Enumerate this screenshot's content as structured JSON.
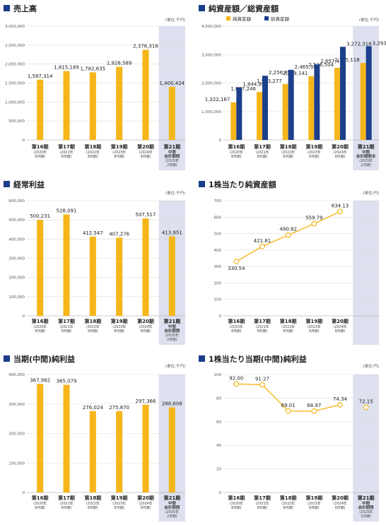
{
  "colors": {
    "bar": "#f5b61a",
    "navy": "#1c3f8c",
    "highlight": "#dde0ee",
    "title_marker": "#1a3c8b",
    "line": "#f5b61a"
  },
  "chart_data": [
    {
      "type": "bar",
      "title": "売上高",
      "unit": "(単位:千円)",
      "categories": [
        "第16期",
        "第17期",
        "第18期",
        "第19期",
        "第20期",
        "第21期"
      ],
      "sublabels": [
        [
          "(2020年",
          "8月期)"
        ],
        [
          "(2021年",
          "8月期)"
        ],
        [
          "(2022年",
          "8月期)"
        ],
        [
          "(2023年",
          "8月期)"
        ],
        [
          "(2024年",
          "8月期)"
        ],
        [
          "中間",
          "会計期間",
          "(2025年",
          "2月期)"
        ]
      ],
      "ylim": [
        0,
        3000000
      ],
      "yticks": [
        "0",
        "500,000",
        "1,000,000",
        "1,500,000",
        "2,000,000",
        "2,500,000",
        "3,000,000"
      ],
      "series": [
        {
          "values": [
            1587314,
            1815189,
            1782635,
            1928589,
            2376316,
            1400424
          ],
          "labels": [
            "1,587,314",
            "1,815,189",
            "1,782,635",
            "1,928,589",
            "2,376,316",
            "1,400,424"
          ]
        }
      ]
    },
    {
      "type": "bar",
      "title": "純資産額／総資産額",
      "unit": "(単位:千円)",
      "legend": [
        "純資産額",
        "総資産額"
      ],
      "categories": [
        "第16期",
        "第17期",
        "第18期",
        "第19期",
        "第20期",
        "第21期"
      ],
      "sublabels": [
        [
          "(2020年",
          "8月期)"
        ],
        [
          "(2021年",
          "8月期)"
        ],
        [
          "(2022年",
          "8月期)"
        ],
        [
          "(2023年",
          "8月期)"
        ],
        [
          "(2024年",
          "8月期)"
        ],
        [
          "中間",
          "会計期間末",
          "(2025年",
          "2月期)"
        ]
      ],
      "ylim": [
        0,
        4000000
      ],
      "yticks": [
        "0",
        "1,000,000",
        "2,000,000",
        "3,000,000",
        "4,000,000"
      ],
      "series": [
        {
          "name": "純資産額",
          "values": [
            1322167,
            1687246,
            1963277,
            2239141,
            2536504,
            2705118
          ],
          "labels": [
            "1,322,167",
            "1,687,246",
            "1,963,277",
            "2,239,141",
            "2,536,504",
            "2,705,118"
          ]
        },
        {
          "name": "総資産額",
          "values": [
            1844896,
            2256896,
            2465184,
            2657418,
            3272318,
            3293379
          ],
          "labels": [
            "1,844,896",
            "2,256,896",
            "2,465,184",
            "2,657,418",
            "3,272,318",
            "3,293,379"
          ]
        }
      ]
    },
    {
      "type": "bar",
      "title": "経常利益",
      "unit": "(単位:千円)",
      "categories": [
        "第16期",
        "第17期",
        "第18期",
        "第19期",
        "第20期",
        "第21期"
      ],
      "sublabels": [
        [
          "(2020年",
          "8月期)"
        ],
        [
          "(2021年",
          "8月期)"
        ],
        [
          "(2022年",
          "8月期)"
        ],
        [
          "(2023年",
          "8月期)"
        ],
        [
          "(2024年",
          "8月期)"
        ],
        [
          "中間",
          "会計期間",
          "(2025年",
          "2月期)"
        ]
      ],
      "ylim": [
        0,
        600000
      ],
      "yticks": [
        "0",
        "100,000",
        "200,000",
        "300,000",
        "400,000",
        "500,000",
        "600,000"
      ],
      "series": [
        {
          "values": [
            500231,
            528091,
            412547,
            407276,
            507517,
            413951
          ],
          "labels": [
            "500,231",
            "528,091",
            "412,547",
            "407,276",
            "507,517",
            "413,951"
          ]
        }
      ]
    },
    {
      "type": "line",
      "title": "1株当たり純資産額",
      "unit": "(単位:円)",
      "categories": [
        "第16期",
        "第17期",
        "第18期",
        "第19期",
        "第20期"
      ],
      "sublabels": [
        [
          "(2020年",
          "8月期)"
        ],
        [
          "(2021年",
          "8月期)"
        ],
        [
          "(2022年",
          "8月期)"
        ],
        [
          "(2023年",
          "8月期)"
        ],
        [
          "(2024年",
          "8月期)"
        ]
      ],
      "ylim": [
        0,
        700
      ],
      "yticks": [
        "0",
        "100",
        "200",
        "300",
        "400",
        "500",
        "600",
        "700"
      ],
      "series": [
        {
          "values": [
            330.54,
            421.81,
            490.82,
            559.79,
            634.13
          ],
          "labels": [
            "330.54",
            "421.81",
            "490.82",
            "559.79",
            "634.13"
          ]
        }
      ]
    },
    {
      "type": "bar",
      "title": "当期(中間)純利益",
      "unit": "(単位:千円)",
      "categories": [
        "第16期",
        "第17期",
        "第18期",
        "第19期",
        "第20期",
        "第21期"
      ],
      "sublabels": [
        [
          "(2020年",
          "8月期)"
        ],
        [
          "(2021年",
          "8月期)"
        ],
        [
          "(2022年",
          "8月期)"
        ],
        [
          "(2023年",
          "8月期)"
        ],
        [
          "(2024年",
          "8月期)"
        ],
        [
          "中間",
          "会計期間",
          "(2025年",
          "2月期)"
        ]
      ],
      "ylim": [
        0,
        400000
      ],
      "yticks": [
        "0",
        "100,000",
        "200,000",
        "300,000",
        "400,000"
      ],
      "series": [
        {
          "values": [
            367982,
            365079,
            276024,
            275870,
            297366,
            288606
          ],
          "labels": [
            "367,982",
            "365,079",
            "276,024",
            "275,870",
            "297,366",
            "288,606"
          ]
        }
      ]
    },
    {
      "type": "line",
      "title": "1株当たり当期(中間)純利益",
      "unit": "(単位:円)",
      "categories": [
        "第16期",
        "第17期",
        "第18期",
        "第19期",
        "第20期",
        "第21期"
      ],
      "sublabels": [
        [
          "(2020年",
          "8月期)"
        ],
        [
          "(2021年",
          "8月期)"
        ],
        [
          "(2022年",
          "8月期)"
        ],
        [
          "(2023年",
          "8月期)"
        ],
        [
          "(2024年",
          "8月期)"
        ],
        [
          "中間",
          "会計期間",
          "(2025年",
          "2月期)"
        ]
      ],
      "ylim": [
        0,
        100
      ],
      "yticks": [
        "0",
        "20",
        "40",
        "60",
        "80",
        "100"
      ],
      "series": [
        {
          "values": [
            92.0,
            91.27,
            69.01,
            68.97,
            74.34,
            72.15
          ],
          "labels": [
            "92.00",
            "91.27",
            "69.01",
            "68.97",
            "74.34",
            "72.15"
          ],
          "connected_count": 5
        }
      ]
    }
  ]
}
